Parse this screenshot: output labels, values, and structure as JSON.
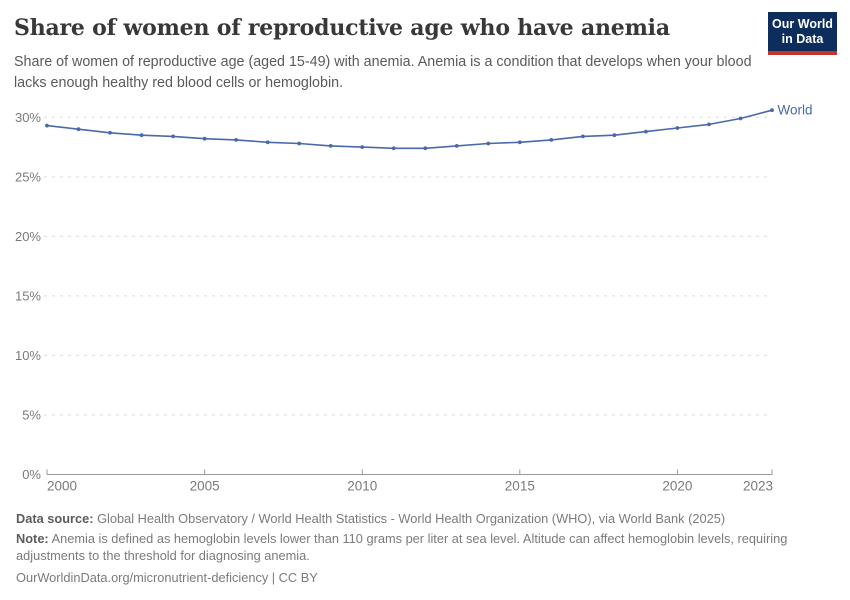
{
  "header": {
    "title": "Share of women of reproductive age who have anemia",
    "subtitle": "Share of women of reproductive age (aged 15-49) with anemia. Anemia is a condition that develops when your blood lacks enough healthy red blood cells or hemoglobin.",
    "logo": {
      "line1": "Our World",
      "line2": "in Data",
      "bg_color": "#0d2e5c",
      "accent_color": "#c5342a"
    }
  },
  "chart_data": {
    "type": "line",
    "title": "Share of women of reproductive age who have anemia",
    "xlabel": "",
    "ylabel": "",
    "xlim": [
      2000,
      2023
    ],
    "ylim": [
      0,
      30
    ],
    "xticks": [
      2000,
      2005,
      2010,
      2015,
      2020,
      2023
    ],
    "yticks": [
      0,
      5,
      10,
      15,
      20,
      25,
      30
    ],
    "ytick_suffix": "%",
    "grid": "dashed-horizontal",
    "legend_position": "end-of-line-label",
    "x": [
      2000,
      2001,
      2002,
      2003,
      2004,
      2005,
      2006,
      2007,
      2008,
      2009,
      2010,
      2011,
      2012,
      2013,
      2014,
      2015,
      2016,
      2017,
      2018,
      2019,
      2020,
      2021,
      2022,
      2023
    ],
    "series": [
      {
        "name": "World",
        "color": "#4a69a8",
        "values": [
          29.3,
          29.0,
          28.7,
          28.5,
          28.4,
          28.2,
          28.1,
          27.9,
          27.8,
          27.6,
          27.5,
          27.4,
          27.4,
          27.6,
          27.8,
          27.9,
          28.1,
          28.4,
          28.5,
          28.8,
          29.1,
          29.4,
          29.9,
          30.6
        ]
      }
    ],
    "colors": {
      "grid": "#dcdcdc",
      "axis": "#999999",
      "tick_label": "#7a7a7a",
      "line": "#4a69a8"
    }
  },
  "footer": {
    "data_source_label": "Data source:",
    "data_source_text": "Global Health Observatory / World Health Statistics - World Health Organization (WHO), via World Bank (2025)",
    "note_label": "Note:",
    "note_text": "Anemia is defined as hemoglobin levels lower than 110 grams per liter at sea level. Altitude can affect hemoglobin levels, requiring adjustments to the threshold for diagnosing anemia.",
    "attribution": "OurWorldinData.org/micronutrient-deficiency | CC BY"
  }
}
